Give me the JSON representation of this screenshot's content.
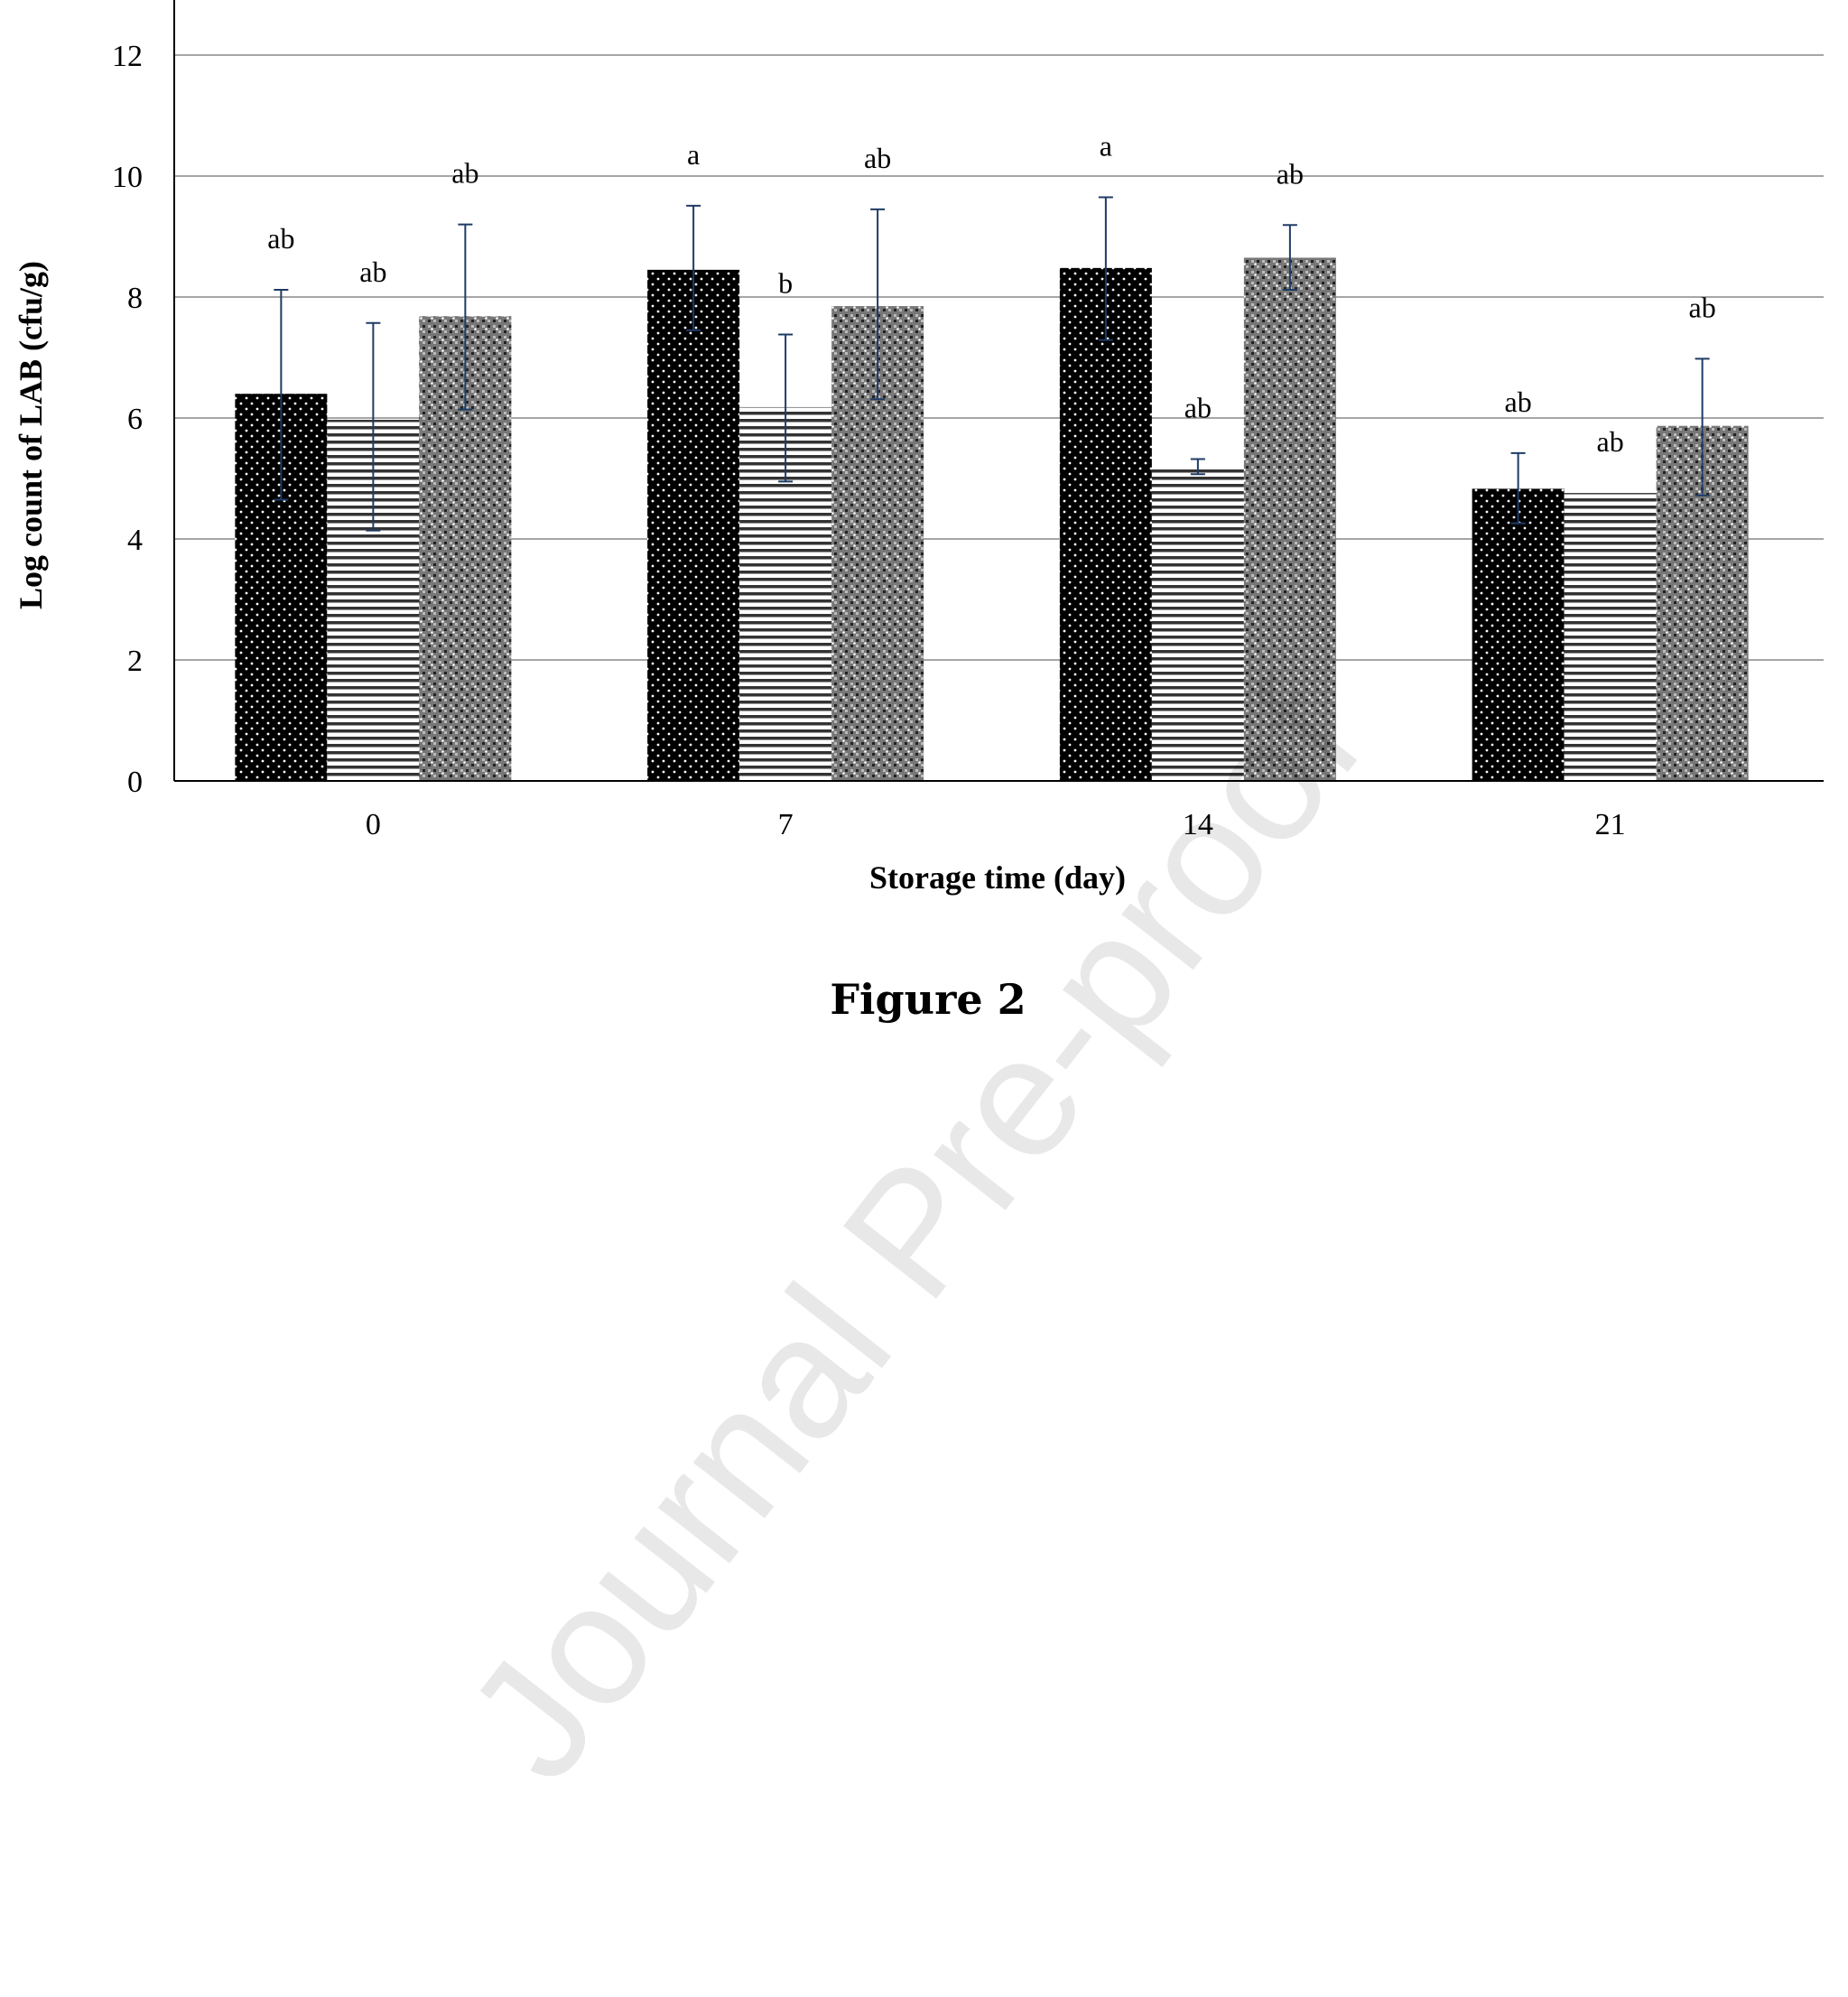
{
  "chart_data": {
    "type": "bar",
    "title": "",
    "xlabel": "Storage time (day)",
    "ylabel": "Log count of LAB (cfu/g)",
    "ylim": [
      0,
      13
    ],
    "yticks": [
      0,
      2,
      4,
      6,
      8,
      10,
      12
    ],
    "grid": true,
    "legend": "none",
    "categories": [
      "0",
      "7",
      "14",
      "21"
    ],
    "series": [
      {
        "pattern": "black-dotted",
        "values": [
          6.4,
          8.45,
          8.48,
          4.83
        ],
        "err_upper": [
          8.12,
          9.51,
          9.65,
          5.42
        ],
        "err_lower": [
          4.65,
          7.45,
          7.29,
          4.26
        ],
        "letters": [
          "ab",
          "a",
          "a",
          "ab"
        ]
      },
      {
        "pattern": "horizontal-striped",
        "values": [
          5.97,
          6.18,
          5.18,
          4.76
        ],
        "err_upper": [
          7.57,
          7.38,
          5.32,
          null
        ],
        "err_lower": [
          4.14,
          4.95,
          5.07,
          null
        ],
        "letters": [
          "ab",
          "b",
          "ab",
          "ab"
        ]
      },
      {
        "pattern": "gray-checkered",
        "values": [
          7.68,
          7.85,
          8.65,
          5.87
        ],
        "err_upper": [
          9.2,
          9.45,
          9.19,
          6.98
        ],
        "err_lower": [
          6.14,
          6.31,
          8.12,
          4.72
        ],
        "letters": [
          "ab",
          "ab",
          "ab",
          "ab"
        ]
      }
    ],
    "colors": {
      "error_bar": "#1f3b64",
      "grid": "#a6a6a6"
    }
  },
  "caption": "Figure 2",
  "watermark": "Journal Pre-proof"
}
